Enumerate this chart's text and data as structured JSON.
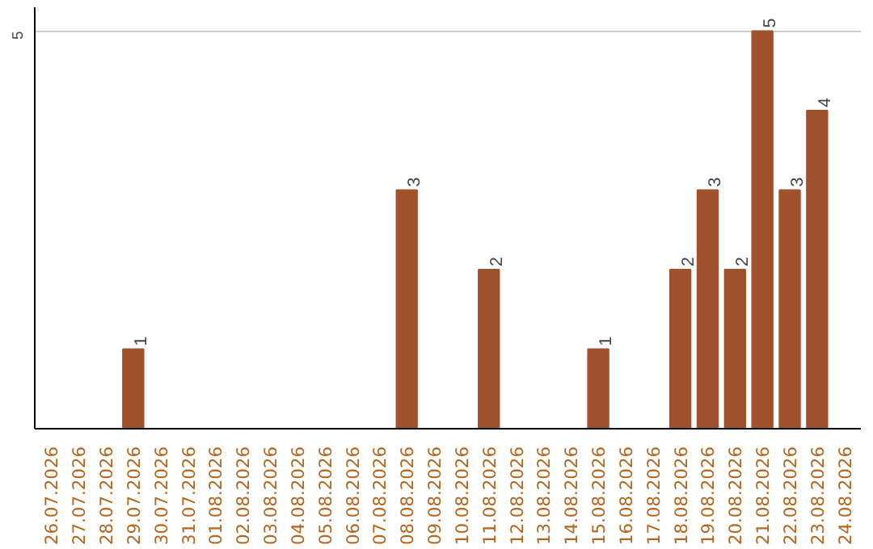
{
  "chart_data": {
    "type": "bar",
    "categories": [
      "26.07.2026",
      "27.07.2026",
      "28.07.2026",
      "29.07.2026",
      "30.07.2026",
      "31.07.2026",
      "01.08.2026",
      "02.08.2026",
      "03.08.2026",
      "04.08.2026",
      "05.08.2026",
      "06.08.2026",
      "07.08.2026",
      "08.08.2026",
      "09.08.2026",
      "10.08.2026",
      "11.08.2026",
      "12.08.2026",
      "13.08.2026",
      "14.08.2026",
      "15.08.2026",
      "16.08.2026",
      "17.08.2026",
      "18.08.2026",
      "19.08.2026",
      "20.08.2026",
      "21.08.2026",
      "22.08.2026",
      "23.08.2026",
      "24.08.2026"
    ],
    "values": [
      0,
      0,
      0,
      1,
      0,
      0,
      0,
      0,
      0,
      0,
      0,
      0,
      0,
      3,
      0,
      0,
      2,
      0,
      0,
      0,
      1,
      0,
      0,
      2,
      3,
      2,
      5,
      3,
      4,
      0
    ],
    "value_labels": [
      null,
      null,
      null,
      "1",
      null,
      null,
      null,
      null,
      null,
      null,
      null,
      null,
      null,
      "3",
      null,
      null,
      "2",
      null,
      null,
      null,
      "1",
      null,
      null,
      "2",
      "3",
      "2",
      "5",
      "3",
      "4",
      null
    ],
    "color": "#a0522d",
    "ylim": [
      0,
      5.3
    ],
    "yticks": [
      5
    ],
    "grid": "y"
  }
}
